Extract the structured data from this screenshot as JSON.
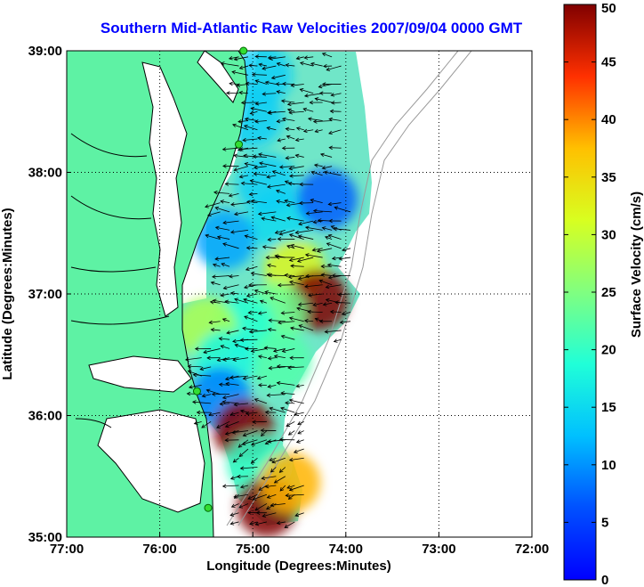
{
  "title": "Southern Mid-Atlantic Raw Velocities 2007/09/04 0000 GMT",
  "x_axis": {
    "label": "Longitude (Degrees:Minutes)",
    "ticks": [
      {
        "label": "77:00",
        "value": -77
      },
      {
        "label": "76:00",
        "value": -76
      },
      {
        "label": "75:00",
        "value": -75
      },
      {
        "label": "74:00",
        "value": -74
      },
      {
        "label": "73:00",
        "value": -73
      },
      {
        "label": "72:00",
        "value": -72
      }
    ]
  },
  "y_axis": {
    "label": "Latitude (Degrees:Minutes)",
    "ticks": [
      {
        "label": "39:00",
        "value": 39
      },
      {
        "label": "38:00",
        "value": 38
      },
      {
        "label": "37:00",
        "value": 37
      },
      {
        "label": "36:00",
        "value": 36
      },
      {
        "label": "35:00",
        "value": 35
      }
    ]
  },
  "colorbar": {
    "label": "Surface Velocity (cm/s)",
    "min": 0,
    "max": 50,
    "ticks": [
      "0",
      "5",
      "10",
      "15",
      "20",
      "25",
      "30",
      "35",
      "40",
      "45",
      "50"
    ]
  },
  "colors": {
    "land": "#5ef2a4",
    "coast": "#000000",
    "title": "#0000ff",
    "grid": "#000000",
    "bathymetry": "#9a9a9a",
    "station": "#33dd33"
  },
  "stations": [
    {
      "lon": -75.1,
      "lat": 39.0
    },
    {
      "lon": -75.15,
      "lat": 38.23
    },
    {
      "lon": -75.6,
      "lat": 36.2
    },
    {
      "lon": -75.48,
      "lat": 35.24
    }
  ],
  "blobs": [
    {
      "lon": -74.72,
      "lat": 37.6,
      "v": 15
    },
    {
      "lon": -74.2,
      "lat": 37.78,
      "v": 7
    },
    {
      "lon": -74.85,
      "lat": 37.9,
      "v": 14
    },
    {
      "lon": -75.0,
      "lat": 38.45,
      "v": 14
    },
    {
      "lon": -74.9,
      "lat": 38.8,
      "v": 14
    },
    {
      "lon": -75.3,
      "lat": 37.45,
      "v": 11
    },
    {
      "lon": -74.55,
      "lat": 37.2,
      "v": 32
    },
    {
      "lon": -74.3,
      "lat": 36.95,
      "v": 50
    },
    {
      "lon": -74.75,
      "lat": 36.85,
      "v": 24
    },
    {
      "lon": -75.1,
      "lat": 36.75,
      "v": 19
    },
    {
      "lon": -75.5,
      "lat": 36.72,
      "v": 28
    },
    {
      "lon": -74.7,
      "lat": 36.45,
      "v": 22
    },
    {
      "lon": -75.3,
      "lat": 36.45,
      "v": 18
    },
    {
      "lon": -75.35,
      "lat": 36.15,
      "v": 9
    },
    {
      "lon": -75.1,
      "lat": 35.88,
      "v": 50
    },
    {
      "lon": -74.95,
      "lat": 35.6,
      "v": 20
    },
    {
      "lon": -74.85,
      "lat": 35.25,
      "v": 50
    },
    {
      "lon": -74.6,
      "lat": 35.45,
      "v": 38
    }
  ]
}
